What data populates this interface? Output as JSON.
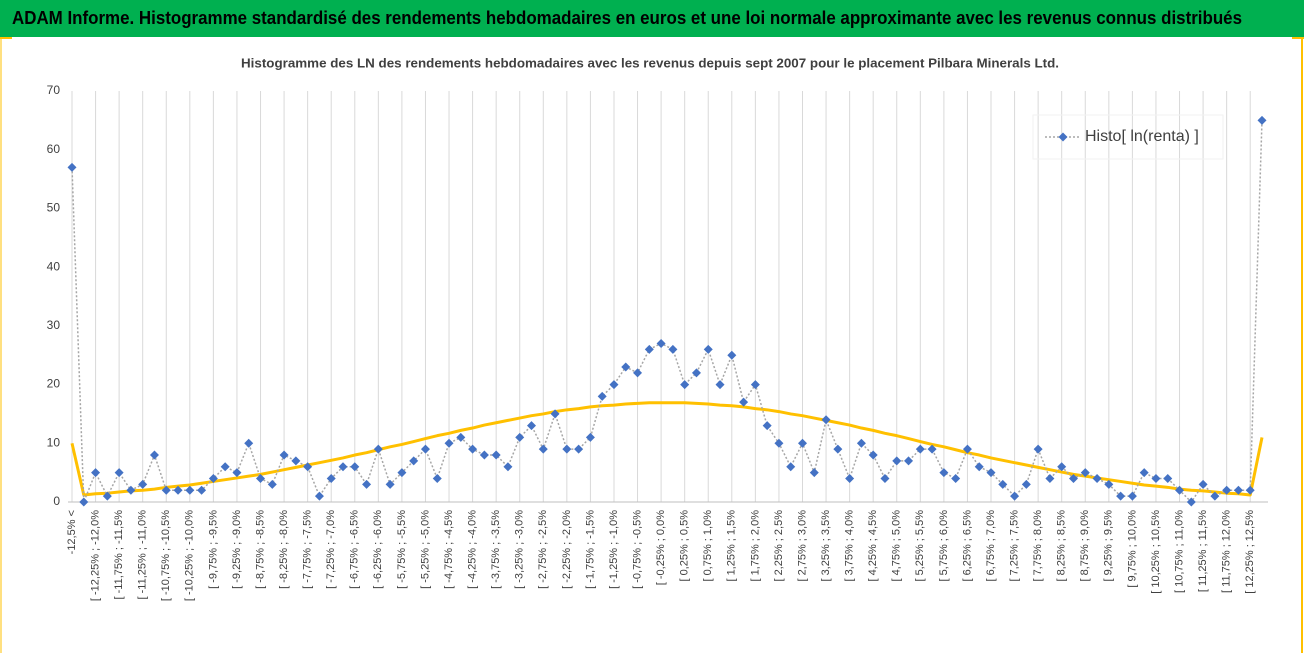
{
  "chart_data": {
    "type": "line",
    "header": "ADAM Informe. Histogramme standardisé des rendements hebdomadaires en euros et une loi normale approximante avec les revenus connus distribués",
    "title": "Histogramme des LN des rendements hebdomadaires avec les revenus depuis sept 2007 pour le placement Pilbara Minerals Ltd.",
    "categories": [
      "-12,5% <",
      null,
      "[ -12,25% ; -12,0%",
      null,
      "[ -11,75% ; -11,5%",
      null,
      "[ -11,25% ; -11,0%",
      null,
      "[ -10,75% ; -10,5%",
      null,
      "[ -10,25% ; -10,0%",
      null,
      "[ -9,75% ; -9,5%",
      null,
      "[ -9,25% ; -9,0%",
      null,
      "[ -8,75% ; -8,5%",
      null,
      "[ -8,25% ; -8,0%",
      null,
      "[ -7,75% ; -7,5%",
      null,
      "[ -7,25% ; -7,0%",
      null,
      "[ -6,75% ; -6,5%",
      null,
      "[ -6,25% ; -6,0%",
      null,
      "[ -5,75% ; -5,5%",
      null,
      "[ -5,25% ; -5,0%",
      null,
      "[ -4,75% ; -4,5%",
      null,
      "[ -4,25% ; -4,0%",
      null,
      "[ -3,75% ; -3,5%",
      null,
      "[ -3,25% ; -3,0%",
      null,
      "[ -2,75% ; -2,5%",
      null,
      "[ -2,25% ; -2,0%",
      null,
      "[ -1,75% ; -1,5%",
      null,
      "[ -1,25% ; -1,0%",
      null,
      "[ -0,75% ; -0,5%",
      null,
      "[ -0,25% ; 0,0%",
      null,
      "[ 0,25% ; 0,5%",
      null,
      "[ 0,75% ; 1,0%",
      null,
      "[ 1,25% ; 1,5%",
      null,
      "[ 1,75% ; 2,0%",
      null,
      "[ 2,25% ; 2,5%",
      null,
      "[ 2,75% ; 3,0%",
      null,
      "[ 3,25% ; 3,5%",
      null,
      "[ 3,75% ; 4,0%",
      null,
      "[ 4,25% ; 4,5%",
      null,
      "[ 4,75% ; 5,0%",
      null,
      "[ 5,25% ; 5,5%",
      null,
      "[ 5,75% ; 6,0%",
      null,
      "[ 6,25% ; 6,5%",
      null,
      "[ 6,75% ; 7,0%",
      null,
      "[ 7,25% ; 7,5%",
      null,
      "[ 7,75% ; 8,0%",
      null,
      "[ 8,25% ; 8,5%",
      null,
      "[ 8,75% ; 9,0%",
      null,
      "[ 9,25% ; 9,5%",
      null,
      "[ 9,75% ; 10,0%",
      null,
      "[ 10,25% ; 10,5%",
      null,
      "[ 10,75% ; 11,0%",
      null,
      "[ 11,25% ; 11,5%",
      null,
      "[ 11,75% ; 12,0%",
      null,
      "[ 12,25% ; 12,5%",
      null
    ],
    "series": [
      {
        "name": "Histo[ ln(renta) ]",
        "color": "#4472c4",
        "line_color": "#a6a6a6",
        "marker": "diamond",
        "values": [
          57,
          0,
          5,
          1,
          5,
          2,
          3,
          8,
          2,
          2,
          2,
          2,
          4,
          6,
          5,
          10,
          4,
          3,
          8,
          7,
          6,
          1,
          4,
          6,
          6,
          3,
          9,
          3,
          5,
          7,
          9,
          4,
          10,
          11,
          9,
          8,
          8,
          6,
          11,
          13,
          9,
          15,
          9,
          9,
          11,
          18,
          20,
          23,
          22,
          26,
          27,
          26,
          20,
          22,
          26,
          20,
          25,
          17,
          20,
          13,
          10,
          6,
          10,
          5,
          14,
          9,
          4,
          10,
          8,
          4,
          7,
          7,
          9,
          9,
          5,
          4,
          9,
          6,
          5,
          3,
          1,
          3,
          9,
          4,
          6,
          4,
          5,
          4,
          3,
          1,
          1,
          5,
          4,
          4,
          2,
          0,
          3,
          1,
          2,
          2,
          2,
          65
        ]
      },
      {
        "color": "#ffc000",
        "values": [
          10,
          1.2,
          1.4,
          1.5,
          1.7,
          1.9,
          2.0,
          2.2,
          2.5,
          2.7,
          2.9,
          3.2,
          3.5,
          3.8,
          4.1,
          4.4,
          4.7,
          5.1,
          5.5,
          5.9,
          6.3,
          6.7,
          7.1,
          7.5,
          8.0,
          8.4,
          8.9,
          9.4,
          9.8,
          10.3,
          10.8,
          11.3,
          11.7,
          12.2,
          12.6,
          13.1,
          13.5,
          13.9,
          14.3,
          14.7,
          15.0,
          15.4,
          15.7,
          15.9,
          16.2,
          16.4,
          16.5,
          16.7,
          16.8,
          16.9,
          16.9,
          16.9,
          16.9,
          16.8,
          16.7,
          16.5,
          16.4,
          16.2,
          15.9,
          15.7,
          15.4,
          15.0,
          14.7,
          14.3,
          13.9,
          13.5,
          13.1,
          12.6,
          12.2,
          11.7,
          11.3,
          10.8,
          10.3,
          9.8,
          9.4,
          8.9,
          8.4,
          8.0,
          7.5,
          7.1,
          6.7,
          6.3,
          5.9,
          5.5,
          5.1,
          4.7,
          4.4,
          4.1,
          3.8,
          3.5,
          3.2,
          2.9,
          2.7,
          2.5,
          2.2,
          2.0,
          1.9,
          1.7,
          1.5,
          1.4,
          1.2,
          11
        ]
      }
    ],
    "ylim": [
      0,
      70
    ],
    "yticks": [
      0,
      10,
      20,
      30,
      40,
      50,
      60,
      70
    ],
    "xgrid": true,
    "legend": "upper right"
  }
}
